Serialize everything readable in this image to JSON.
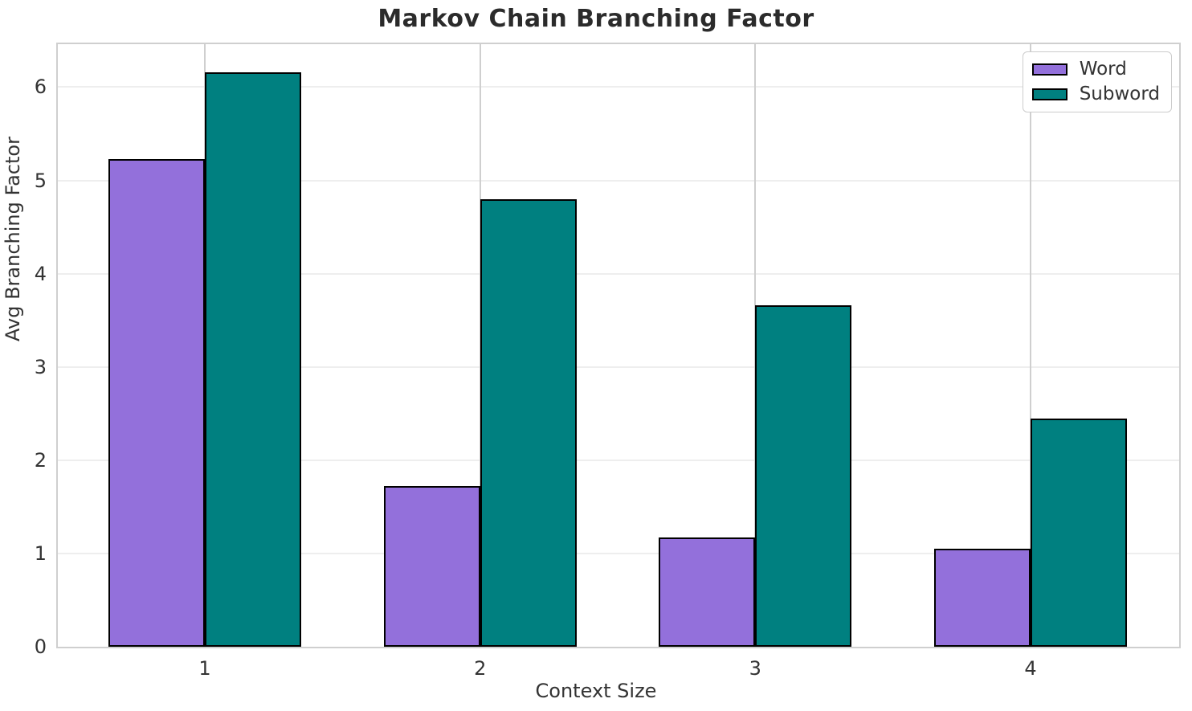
{
  "title": "Markov Chain Branching Factor",
  "chart_data": {
    "type": "bar",
    "categories": [
      "1",
      "2",
      "3",
      "4"
    ],
    "series": [
      {
        "name": "Word",
        "color": "#9370DB",
        "values": [
          5.23,
          1.72,
          1.17,
          1.05
        ]
      },
      {
        "name": "Subword",
        "color": "#008080",
        "values": [
          6.16,
          4.8,
          3.66,
          2.45
        ]
      }
    ],
    "title": "Markov Chain Branching Factor",
    "xlabel": "Context Size",
    "ylabel": "Avg Branching Factor",
    "yticks": [
      0,
      1,
      2,
      3,
      4,
      5,
      6
    ],
    "ylim": [
      0,
      6.46
    ],
    "grid": true,
    "bar_edge_color": "#000000",
    "legend_position": "upper right"
  }
}
